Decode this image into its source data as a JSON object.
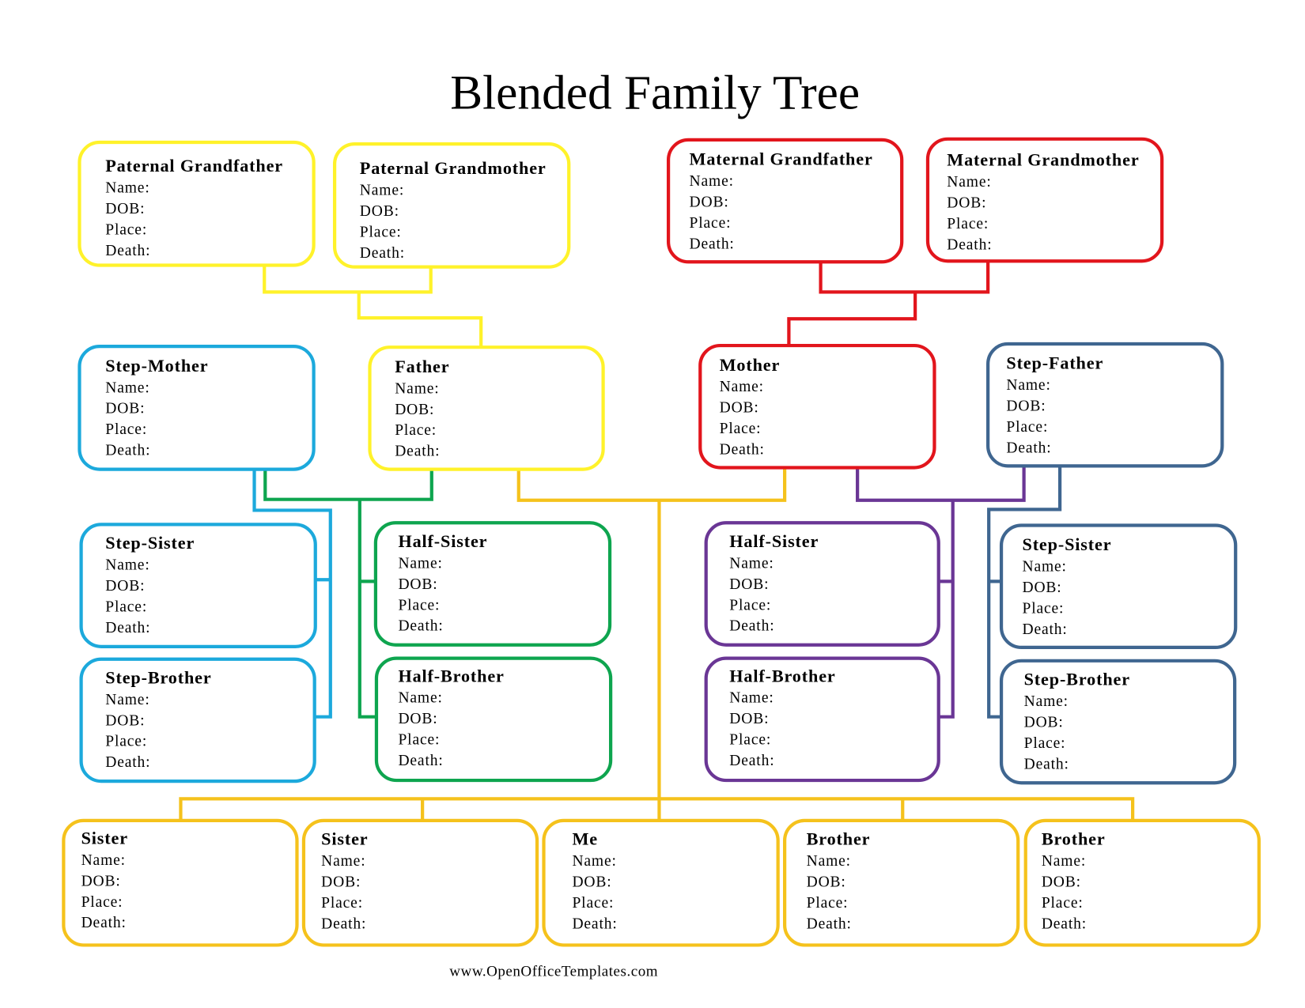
{
  "title": "Blended Family Tree",
  "footer": "www.OpenOfficeTemplates.com",
  "field_labels": [
    "Name:",
    "DOB:",
    "Place:",
    "Death:"
  ],
  "colors": {
    "paternal": "#fff22a",
    "maternal": "#e2151c",
    "step_mother_side": "#1ca9dc",
    "half_father_side": "#0ea54f",
    "children": "#f5c21c",
    "half_mother_side": "#6a3695",
    "step_father_side": "#3f6690"
  },
  "boxes": [
    {
      "id": "paternal-grandfather",
      "label": "Paternal Grandfather",
      "color": "paternal"
    },
    {
      "id": "paternal-grandmother",
      "label": "Paternal Grandmother",
      "color": "paternal"
    },
    {
      "id": "maternal-grandfather",
      "label": "Maternal Grandfather",
      "color": "maternal"
    },
    {
      "id": "maternal-grandmother",
      "label": "Maternal Grandmother",
      "color": "maternal"
    },
    {
      "id": "step-mother",
      "label": "Step-Mother",
      "color": "step_mother_side"
    },
    {
      "id": "father",
      "label": "Father",
      "color": "paternal"
    },
    {
      "id": "mother",
      "label": "Mother",
      "color": "maternal"
    },
    {
      "id": "step-father",
      "label": "Step-Father",
      "color": "step_father_side"
    },
    {
      "id": "step-sister-left",
      "label": "Step-Sister",
      "color": "step_mother_side"
    },
    {
      "id": "half-sister-left",
      "label": "Half-Sister",
      "color": "half_father_side"
    },
    {
      "id": "half-sister-right",
      "label": "Half-Sister",
      "color": "half_mother_side"
    },
    {
      "id": "step-sister-right",
      "label": "Step-Sister",
      "color": "step_father_side"
    },
    {
      "id": "step-brother-left",
      "label": "Step-Brother",
      "color": "step_mother_side"
    },
    {
      "id": "half-brother-left",
      "label": "Half-Brother",
      "color": "half_father_side"
    },
    {
      "id": "half-brother-right",
      "label": "Half-Brother",
      "color": "half_mother_side"
    },
    {
      "id": "step-brother-right",
      "label": "Step-Brother",
      "color": "step_father_side"
    },
    {
      "id": "sister-1",
      "label": "Sister",
      "color": "children"
    },
    {
      "id": "sister-2",
      "label": "Sister",
      "color": "children"
    },
    {
      "id": "me",
      "label": "Me",
      "color": "children"
    },
    {
      "id": "brother-1",
      "label": "Brother",
      "color": "children"
    },
    {
      "id": "brother-2",
      "label": "Brother",
      "color": "children"
    }
  ]
}
